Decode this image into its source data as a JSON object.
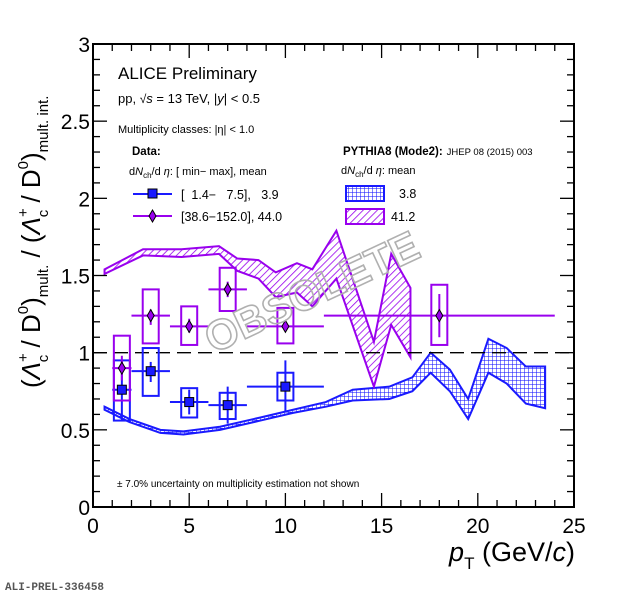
{
  "chart_data": {
    "type": "scatter",
    "title": "ALICE Preliminary",
    "subtitle": "pp, √s = 13 TeV, |y| < 0.5",
    "annotation_multiplicity": "Multiplicity classes: |η| < 1.0",
    "annotation_uncertainty": "± 7.0% uncertainty on multiplicity estimation not shown",
    "watermark": "OBSOLETE",
    "xlabel": "p_T (GeV/c)",
    "ylabel": "(Λc+ / D0)mult. / (Λc+ / D0)mult. int.",
    "xlim": [
      0,
      25
    ],
    "ylim": [
      0,
      3
    ],
    "x_ticks": [
      "0",
      "5",
      "10",
      "15",
      "20",
      "25"
    ],
    "y_ticks": [
      "0",
      "0.5",
      "1",
      "1.5",
      "2",
      "2.5",
      "3"
    ],
    "reference_line": 1.0,
    "legend": {
      "data_header": "Data:",
      "data_subheader": "dNch/dη: [ min−  max], mean",
      "data_entries": [
        "[  1.4−   7.5],   3.9",
        "[38.6−152.0], 44.0"
      ],
      "model_header": "PYTHIA8 (Mode2):",
      "model_reference": "JHEP 08 (2015) 003",
      "model_subheader": "dNch/dη: mean",
      "model_entries": [
        "3.8",
        "41.2"
      ],
      "placement": "top"
    },
    "series": [
      {
        "name": "Data [1.4−7.5], 3.9",
        "color": "#1a1aff",
        "marker": "square",
        "points": [
          {
            "x": 1.5,
            "xlo": 1,
            "xhi": 2,
            "y": 0.76,
            "stat": [
              0.56,
              0.95
            ],
            "syst": [
              0.56,
              0.95
            ]
          },
          {
            "x": 3,
            "xlo": 2,
            "xhi": 4,
            "y": 0.88,
            "stat": [
              0.81,
              0.94
            ],
            "syst": [
              0.72,
              1.03
            ]
          },
          {
            "x": 5,
            "xlo": 4,
            "xhi": 6,
            "y": 0.68,
            "stat": [
              0.6,
              0.76
            ],
            "syst": [
              0.58,
              0.77
            ]
          },
          {
            "x": 7,
            "xlo": 6,
            "xhi": 8,
            "y": 0.66,
            "stat": [
              0.54,
              0.78
            ],
            "syst": [
              0.57,
              0.74
            ]
          },
          {
            "x": 10,
            "xlo": 8,
            "xhi": 12,
            "y": 0.78,
            "stat": [
              0.62,
              0.95
            ],
            "syst": [
              0.69,
              0.87
            ]
          }
        ]
      },
      {
        "name": "Data [38.6−152.0], 44.0",
        "color": "#9900ee",
        "marker": "diamond",
        "points": [
          {
            "x": 1.5,
            "xlo": 1,
            "xhi": 2,
            "y": 0.9,
            "stat": [
              0.82,
              0.98
            ],
            "syst": [
              0.69,
              1.11
            ]
          },
          {
            "x": 3,
            "xlo": 2,
            "xhi": 4,
            "y": 1.24,
            "stat": [
              1.18,
              1.28
            ],
            "syst": [
              1.06,
              1.41
            ]
          },
          {
            "x": 5,
            "xlo": 4,
            "xhi": 6,
            "y": 1.17,
            "stat": [
              1.13,
              1.22
            ],
            "syst": [
              1.05,
              1.3
            ]
          },
          {
            "x": 7,
            "xlo": 6,
            "xhi": 8,
            "y": 1.41,
            "stat": [
              1.36,
              1.46
            ],
            "syst": [
              1.27,
              1.55
            ]
          },
          {
            "x": 10,
            "xlo": 8,
            "xhi": 12,
            "y": 1.17,
            "stat": [
              1.17,
              1.17
            ],
            "syst": [
              1.06,
              1.29
            ]
          },
          {
            "x": 18,
            "xlo": 12,
            "xhi": 24,
            "y": 1.24,
            "stat": [
              1.1,
              1.38
            ],
            "syst": [
              1.05,
              1.44
            ]
          }
        ]
      }
    ],
    "bands": [
      {
        "name": "PYTHIA8 Mode2, 3.8",
        "color": "#1a1aff",
        "pattern": "crosshatch",
        "x": [
          0.6,
          1.9,
          3.5,
          4.7,
          6.6,
          8.7,
          10.4,
          12.1,
          13.5,
          15.4,
          16.6,
          17.55,
          18.55,
          19.5,
          20.55,
          21.5,
          22.5,
          23.5
        ],
        "upper": [
          0.65,
          0.57,
          0.5,
          0.49,
          0.52,
          0.58,
          0.63,
          0.68,
          0.76,
          0.78,
          0.84,
          1.0,
          0.89,
          0.7,
          1.09,
          1.03,
          0.91,
          0.91
        ],
        "lower": [
          0.63,
          0.55,
          0.48,
          0.47,
          0.5,
          0.56,
          0.61,
          0.65,
          0.69,
          0.7,
          0.75,
          0.87,
          0.75,
          0.57,
          0.87,
          0.8,
          0.67,
          0.64
        ]
      },
      {
        "name": "PYTHIA8 Mode2, 41.2",
        "color": "#9900ee",
        "pattern": "hatch",
        "x": [
          0.6,
          2.6,
          4.6,
          6.55,
          7.5,
          8.6,
          9.5,
          10.6,
          11.4,
          12.65,
          14.6,
          15.5,
          16.5
        ],
        "upper": [
          1.54,
          1.67,
          1.67,
          1.69,
          1.61,
          1.6,
          1.52,
          1.58,
          1.54,
          1.79,
          1.07,
          1.64,
          1.42
        ],
        "lower": [
          1.51,
          1.63,
          1.62,
          1.64,
          1.53,
          1.48,
          1.36,
          1.39,
          1.3,
          1.48,
          0.78,
          1.18,
          0.97
        ]
      }
    ]
  },
  "footer_label": "ALI-PREL-336458"
}
